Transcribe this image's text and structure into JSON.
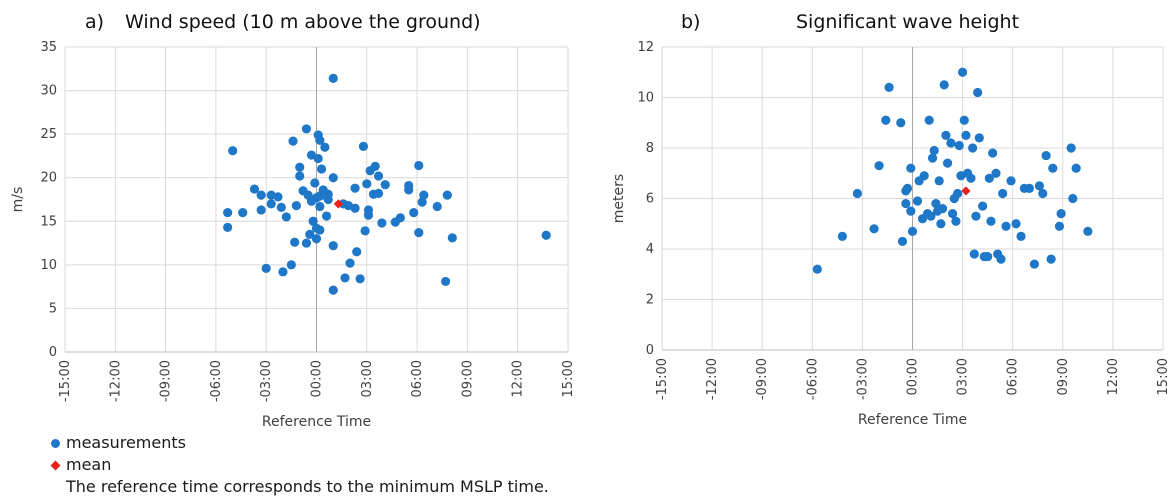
{
  "legend": {
    "measurements": "measurements",
    "mean": "mean",
    "note": "The reference time corresponds to the minimum MSLP time."
  },
  "colors": {
    "measurements": "#1f77c8",
    "mean": "#e8211b",
    "grid": "#d9d9d9",
    "zero_line": "#a6a6a6"
  },
  "chart_data": [
    {
      "type": "scatter",
      "panel": "a)",
      "title": "Wind speed (10 m above the ground)",
      "xlabel": "Reference Time",
      "ylabel": "m/s",
      "x_unit": "hours",
      "xlim": [
        -15,
        15
      ],
      "ylim": [
        0,
        35
      ],
      "xticks": [
        -15,
        -12,
        -9,
        -6,
        -3,
        0,
        3,
        6,
        9,
        12,
        15
      ],
      "xtick_labels": [
        "-15:00",
        "-12:00",
        "-09:00",
        "-06:00",
        "-03:00",
        "00:00",
        "03:00",
        "06:00",
        "09:00",
        "12:00",
        "15:00"
      ],
      "yticks": [
        0,
        5,
        10,
        15,
        20,
        25,
        30,
        35
      ],
      "ytick_labels": [
        "0",
        "5",
        "10",
        "15",
        "20",
        "25",
        "30",
        "35"
      ],
      "grid": true,
      "series": [
        {
          "name": "measurements",
          "points": [
            [
              -5.3,
              16.0
            ],
            [
              -5.3,
              14.3
            ],
            [
              -5.0,
              23.1
            ],
            [
              -4.4,
              16.0
            ],
            [
              -3.7,
              18.7
            ],
            [
              -3.3,
              18.0
            ],
            [
              -3.3,
              16.3
            ],
            [
              -3.0,
              9.6
            ],
            [
              -2.7,
              17.0
            ],
            [
              -2.7,
              18.0
            ],
            [
              -2.3,
              17.8
            ],
            [
              -2.1,
              16.6
            ],
            [
              -2.0,
              9.2
            ],
            [
              -1.8,
              15.5
            ],
            [
              -1.5,
              10.0
            ],
            [
              -1.4,
              24.2
            ],
            [
              -1.3,
              12.6
            ],
            [
              -1.2,
              16.8
            ],
            [
              -1.0,
              21.2
            ],
            [
              -1.0,
              20.2
            ],
            [
              -0.8,
              18.5
            ],
            [
              -0.6,
              25.6
            ],
            [
              -0.6,
              12.5
            ],
            [
              -0.5,
              18.0
            ],
            [
              -0.4,
              13.5
            ],
            [
              -0.3,
              22.6
            ],
            [
              -0.3,
              17.3
            ],
            [
              -0.2,
              15.0
            ],
            [
              -0.1,
              19.4
            ],
            [
              0.0,
              17.7
            ],
            [
              0.0,
              14.2
            ],
            [
              0.0,
              13.0
            ],
            [
              0.1,
              24.9
            ],
            [
              0.1,
              22.2
            ],
            [
              0.2,
              17.9
            ],
            [
              0.2,
              16.7
            ],
            [
              0.2,
              24.3
            ],
            [
              0.2,
              14.0
            ],
            [
              0.3,
              18.0
            ],
            [
              0.3,
              21.0
            ],
            [
              0.4,
              18.6
            ],
            [
              0.5,
              23.5
            ],
            [
              0.6,
              15.6
            ],
            [
              0.7,
              17.5
            ],
            [
              0.7,
              18.1
            ],
            [
              1.0,
              31.4
            ],
            [
              1.0,
              20.0
            ],
            [
              1.0,
              12.2
            ],
            [
              1.0,
              7.1
            ],
            [
              1.6,
              17.0
            ],
            [
              1.7,
              8.5
            ],
            [
              1.9,
              16.8
            ],
            [
              2.0,
              10.2
            ],
            [
              2.3,
              18.8
            ],
            [
              2.3,
              16.5
            ],
            [
              2.4,
              11.5
            ],
            [
              2.6,
              8.4
            ],
            [
              2.8,
              23.6
            ],
            [
              2.9,
              13.9
            ],
            [
              3.0,
              19.3
            ],
            [
              3.1,
              16.3
            ],
            [
              3.1,
              15.7
            ],
            [
              3.2,
              20.8
            ],
            [
              3.4,
              18.1
            ],
            [
              3.5,
              21.3
            ],
            [
              3.7,
              20.2
            ],
            [
              3.7,
              18.2
            ],
            [
              3.9,
              14.8
            ],
            [
              4.1,
              19.2
            ],
            [
              4.7,
              14.9
            ],
            [
              5.0,
              15.4
            ],
            [
              5.5,
              19.1
            ],
            [
              5.5,
              18.6
            ],
            [
              5.8,
              16.0
            ],
            [
              6.1,
              21.4
            ],
            [
              6.1,
              13.7
            ],
            [
              6.3,
              17.2
            ],
            [
              6.4,
              18.0
            ],
            [
              7.2,
              16.7
            ],
            [
              7.7,
              8.1
            ],
            [
              7.8,
              18.0
            ],
            [
              8.1,
              13.1
            ],
            [
              13.7,
              13.4
            ]
          ]
        },
        {
          "name": "mean",
          "points": [
            [
              1.3,
              17.0
            ]
          ]
        }
      ]
    },
    {
      "type": "scatter",
      "panel": "b)",
      "title": "Significant wave height",
      "xlabel": "Reference Time",
      "ylabel": "meters",
      "x_unit": "hours",
      "xlim": [
        -15,
        15
      ],
      "ylim": [
        0,
        12
      ],
      "xticks": [
        -15,
        -12,
        -9,
        -6,
        -3,
        0,
        3,
        6,
        9,
        12,
        15
      ],
      "xtick_labels": [
        "-15:00",
        "-12:00",
        "-09:00",
        "-06:00",
        "-03:00",
        "00:00",
        "03:00",
        "06:00",
        "09:00",
        "12:00",
        "15:00"
      ],
      "yticks": [
        0,
        2,
        4,
        6,
        8,
        10,
        12
      ],
      "ytick_labels": [
        "0",
        "2",
        "4",
        "6",
        "8",
        "10",
        "12"
      ],
      "grid": true,
      "series": [
        {
          "name": "measurements",
          "points": [
            [
              -5.7,
              3.2
            ],
            [
              -4.2,
              4.5
            ],
            [
              -3.3,
              6.2
            ],
            [
              -2.3,
              4.8
            ],
            [
              -2.0,
              7.3
            ],
            [
              -1.6,
              9.1
            ],
            [
              -1.4,
              10.4
            ],
            [
              -0.7,
              9.0
            ],
            [
              -0.6,
              4.3
            ],
            [
              -0.4,
              5.8
            ],
            [
              -0.4,
              6.3
            ],
            [
              -0.3,
              6.4
            ],
            [
              -0.1,
              7.2
            ],
            [
              -0.1,
              5.5
            ],
            [
              0.0,
              4.7
            ],
            [
              0.3,
              5.9
            ],
            [
              0.4,
              6.7
            ],
            [
              0.6,
              5.2
            ],
            [
              0.7,
              6.9
            ],
            [
              0.9,
              5.4
            ],
            [
              1.0,
              9.1
            ],
            [
              1.1,
              5.3
            ],
            [
              1.2,
              7.6
            ],
            [
              1.3,
              7.9
            ],
            [
              1.4,
              5.8
            ],
            [
              1.5,
              5.5
            ],
            [
              1.6,
              6.7
            ],
            [
              1.7,
              5.0
            ],
            [
              1.8,
              5.6
            ],
            [
              1.9,
              10.5
            ],
            [
              2.0,
              8.5
            ],
            [
              2.1,
              7.4
            ],
            [
              2.3,
              8.2
            ],
            [
              2.4,
              5.4
            ],
            [
              2.5,
              6.0
            ],
            [
              2.6,
              5.1
            ],
            [
              2.7,
              6.2
            ],
            [
              2.8,
              8.1
            ],
            [
              2.9,
              6.9
            ],
            [
              3.0,
              11.0
            ],
            [
              3.1,
              9.1
            ],
            [
              3.2,
              8.5
            ],
            [
              3.3,
              7.0
            ],
            [
              3.5,
              6.8
            ],
            [
              3.6,
              8.0
            ],
            [
              3.7,
              3.8
            ],
            [
              3.8,
              5.3
            ],
            [
              3.9,
              10.2
            ],
            [
              4.0,
              8.4
            ],
            [
              4.2,
              5.7
            ],
            [
              4.3,
              3.7
            ],
            [
              4.5,
              3.7
            ],
            [
              4.6,
              6.8
            ],
            [
              4.7,
              5.1
            ],
            [
              4.8,
              7.8
            ],
            [
              5.0,
              7.0
            ],
            [
              5.1,
              3.8
            ],
            [
              5.3,
              3.6
            ],
            [
              5.4,
              6.2
            ],
            [
              5.6,
              4.9
            ],
            [
              5.9,
              6.7
            ],
            [
              6.2,
              5.0
            ],
            [
              6.5,
              4.5
            ],
            [
              6.7,
              6.4
            ],
            [
              7.0,
              6.4
            ],
            [
              7.3,
              3.4
            ],
            [
              7.6,
              6.5
            ],
            [
              7.8,
              6.2
            ],
            [
              8.0,
              7.7
            ],
            [
              8.3,
              3.6
            ],
            [
              8.4,
              7.2
            ],
            [
              8.8,
              4.9
            ],
            [
              8.9,
              5.4
            ],
            [
              9.5,
              8.0
            ],
            [
              9.6,
              6.0
            ],
            [
              9.8,
              7.2
            ],
            [
              10.5,
              4.7
            ]
          ]
        },
        {
          "name": "mean",
          "points": [
            [
              3.2,
              6.3
            ]
          ]
        }
      ]
    }
  ]
}
